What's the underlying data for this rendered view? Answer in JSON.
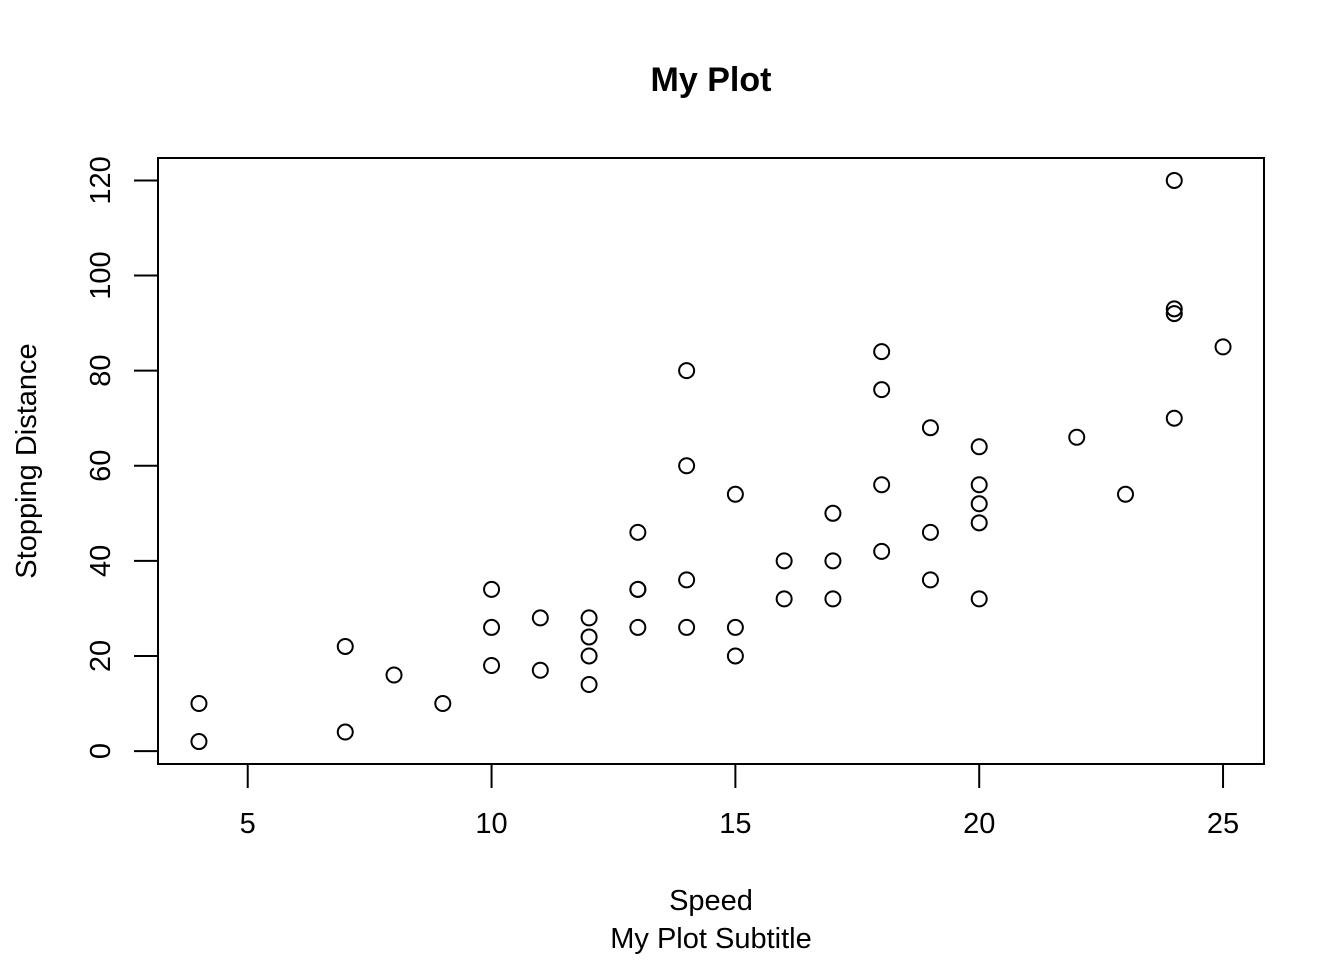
{
  "chart_data": {
    "type": "scatter",
    "title": "My Plot",
    "subtitle": "My Plot Subtitle",
    "xlabel": "Speed",
    "ylabel": "Stopping Distance",
    "xlim": [
      3.16,
      25.84
    ],
    "ylim": [
      -2.72,
      124.72
    ],
    "x_ticks": [
      5,
      10,
      15,
      20,
      25
    ],
    "y_ticks": [
      0,
      20,
      40,
      60,
      80,
      100,
      120
    ],
    "grid": false,
    "legend": "none",
    "marker": "open-circle",
    "colors": {
      "points": "#000000",
      "axes": "#000000",
      "background": "#ffffff"
    },
    "points": [
      {
        "x": 4,
        "y": 2
      },
      {
        "x": 4,
        "y": 10
      },
      {
        "x": 7,
        "y": 4
      },
      {
        "x": 7,
        "y": 22
      },
      {
        "x": 8,
        "y": 16
      },
      {
        "x": 9,
        "y": 10
      },
      {
        "x": 10,
        "y": 18
      },
      {
        "x": 10,
        "y": 26
      },
      {
        "x": 10,
        "y": 34
      },
      {
        "x": 11,
        "y": 17
      },
      {
        "x": 11,
        "y": 28
      },
      {
        "x": 12,
        "y": 14
      },
      {
        "x": 12,
        "y": 20
      },
      {
        "x": 12,
        "y": 24
      },
      {
        "x": 12,
        "y": 28
      },
      {
        "x": 13,
        "y": 26
      },
      {
        "x": 13,
        "y": 34
      },
      {
        "x": 13,
        "y": 34
      },
      {
        "x": 13,
        "y": 46
      },
      {
        "x": 14,
        "y": 26
      },
      {
        "x": 14,
        "y": 36
      },
      {
        "x": 14,
        "y": 60
      },
      {
        "x": 14,
        "y": 80
      },
      {
        "x": 15,
        "y": 20
      },
      {
        "x": 15,
        "y": 26
      },
      {
        "x": 15,
        "y": 54
      },
      {
        "x": 16,
        "y": 32
      },
      {
        "x": 16,
        "y": 40
      },
      {
        "x": 17,
        "y": 32
      },
      {
        "x": 17,
        "y": 40
      },
      {
        "x": 17,
        "y": 50
      },
      {
        "x": 18,
        "y": 42
      },
      {
        "x": 18,
        "y": 56
      },
      {
        "x": 18,
        "y": 76
      },
      {
        "x": 18,
        "y": 84
      },
      {
        "x": 19,
        "y": 36
      },
      {
        "x": 19,
        "y": 46
      },
      {
        "x": 19,
        "y": 68
      },
      {
        "x": 20,
        "y": 32
      },
      {
        "x": 20,
        "y": 48
      },
      {
        "x": 20,
        "y": 52
      },
      {
        "x": 20,
        "y": 56
      },
      {
        "x": 20,
        "y": 64
      },
      {
        "x": 22,
        "y": 66
      },
      {
        "x": 23,
        "y": 54
      },
      {
        "x": 24,
        "y": 70
      },
      {
        "x": 24,
        "y": 92
      },
      {
        "x": 24,
        "y": 93
      },
      {
        "x": 24,
        "y": 120
      },
      {
        "x": 25,
        "y": 85
      }
    ]
  }
}
